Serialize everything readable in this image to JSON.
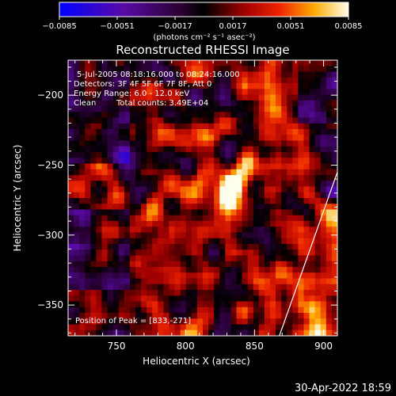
{
  "chart_data": {
    "type": "heatmap",
    "title": "Reconstructed RHESSI Image",
    "xlabel": "Heliocentric X (arcsec)",
    "ylabel": "Heliocentric Y (arcsec)",
    "xlim": [
      715,
      910
    ],
    "ylim": [
      -372,
      -175
    ],
    "x_ticks": [
      750,
      800,
      850,
      900
    ],
    "y_ticks": [
      -350,
      -300,
      -250,
      -200
    ],
    "x_tick_labels": [
      "750",
      "800",
      "850",
      "900"
    ],
    "y_tick_labels": [
      "−350",
      "−300",
      "−250",
      "−200"
    ],
    "grid": false,
    "colorbar": {
      "min": -0.0085,
      "max": 0.0085,
      "ticks": [
        -0.0085,
        -0.0051,
        -0.0017,
        0.0017,
        0.0051,
        0.0085
      ],
      "tick_labels": [
        "−0.0085",
        "−0.0051",
        "−0.0017",
        "0.0017",
        "0.0051",
        "0.0085"
      ],
      "units": "(photons cm⁻² s⁻¹ asec⁻²)",
      "placement": "top"
    },
    "annotations": {
      "time_range": "5-Jul-2005 08:18:16.000 to 08:24:16.000",
      "detectors": "Detectors: 3F 4F 5F 6F 7F 8F, Att 0",
      "energy": "Energy Range: 6.0 - 12.0 keV",
      "algorithm": "Clean",
      "total_counts": "Total counts: 3.49E+04",
      "peak": "Position of Peak = [833,-271]"
    },
    "peak": {
      "x": 833,
      "y": -271
    },
    "limb_line": {
      "x": [
        868,
        910
      ],
      "y": [
        -372,
        -255
      ]
    }
  },
  "footer": {
    "timestamp": "30-Apr-2022 18:59"
  }
}
